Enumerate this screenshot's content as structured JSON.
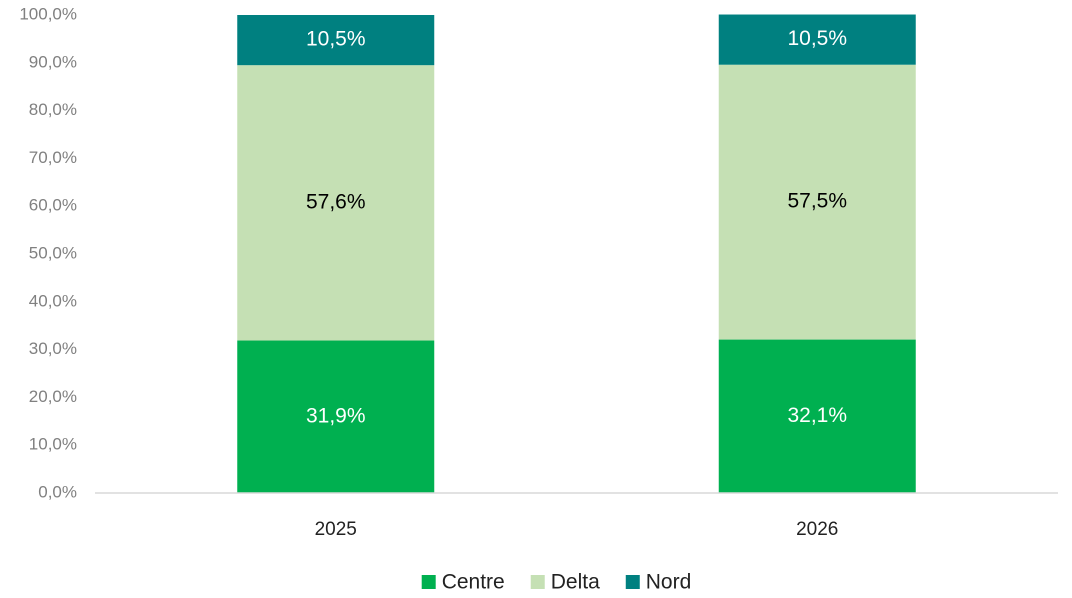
{
  "chart_data": {
    "type": "stacked_bar",
    "categories": [
      "2025",
      "2026"
    ],
    "series": [
      {
        "name": "Centre",
        "color": "#00b050",
        "label_color": "#ffffff",
        "values": [
          31.9,
          32.1
        ],
        "value_labels": [
          "31,9%",
          "32,1%"
        ]
      },
      {
        "name": "Delta",
        "color": "#c5e0b4",
        "label_color": "#000000",
        "values": [
          57.6,
          57.5
        ],
        "value_labels": [
          "57,6%",
          "57,5%"
        ]
      },
      {
        "name": "Nord",
        "color": "#008080",
        "label_color": "#ffffff",
        "values": [
          10.5,
          10.5
        ],
        "value_labels": [
          "10,5%",
          "10,5%"
        ]
      }
    ],
    "ylim": [
      0,
      100
    ],
    "yticks": [
      {
        "value": 0,
        "label": "0,0%"
      },
      {
        "value": 10,
        "label": "10,0%"
      },
      {
        "value": 20,
        "label": "20,0%"
      },
      {
        "value": 30,
        "label": "30,0%"
      },
      {
        "value": 40,
        "label": "40,0%"
      },
      {
        "value": 50,
        "label": "50,0%"
      },
      {
        "value": 60,
        "label": "60,0%"
      },
      {
        "value": 70,
        "label": "70,0%"
      },
      {
        "value": 80,
        "label": "80,0%"
      },
      {
        "value": 90,
        "label": "90,0%"
      },
      {
        "value": 100,
        "label": "100,0%"
      }
    ],
    "grid": false,
    "legend": "bottom"
  }
}
